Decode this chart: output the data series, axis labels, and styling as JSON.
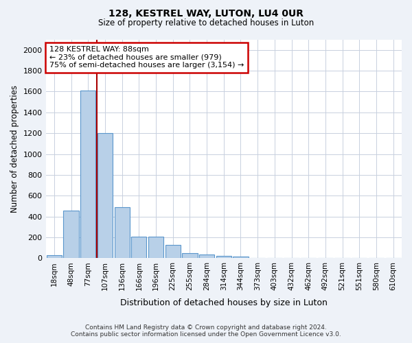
{
  "title1": "128, KESTREL WAY, LUTON, LU4 0UR",
  "title2": "Size of property relative to detached houses in Luton",
  "xlabel": "Distribution of detached houses by size in Luton",
  "ylabel": "Number of detached properties",
  "categories": [
    "18sqm",
    "48sqm",
    "77sqm",
    "107sqm",
    "136sqm",
    "166sqm",
    "196sqm",
    "225sqm",
    "255sqm",
    "284sqm",
    "314sqm",
    "344sqm",
    "373sqm",
    "403sqm",
    "432sqm",
    "462sqm",
    "492sqm",
    "521sqm",
    "551sqm",
    "580sqm",
    "610sqm"
  ],
  "values": [
    30,
    455,
    1610,
    1200,
    490,
    210,
    210,
    125,
    50,
    38,
    22,
    15,
    0,
    0,
    0,
    0,
    0,
    0,
    0,
    0,
    0
  ],
  "bar_color": "#b8d0e8",
  "bar_edge_color": "#5a96cc",
  "property_label": "128 KESTREL WAY: 88sqm",
  "annotation_line1": "← 23% of detached houses are smaller (979)",
  "annotation_line2": "75% of semi-detached houses are larger (3,154) →",
  "vline_color": "#aa0000",
  "vline_position": 2.5,
  "annotation_box_edgecolor": "#cc0000",
  "ylim": [
    0,
    2100
  ],
  "yticks": [
    0,
    200,
    400,
    600,
    800,
    1000,
    1200,
    1400,
    1600,
    1800,
    2000
  ],
  "footer_line1": "Contains HM Land Registry data © Crown copyright and database right 2024.",
  "footer_line2": "Contains public sector information licensed under the Open Government Licence v3.0.",
  "bg_color": "#eef2f8",
  "plot_bg_color": "#ffffff",
  "grid_color": "#c8d0de"
}
